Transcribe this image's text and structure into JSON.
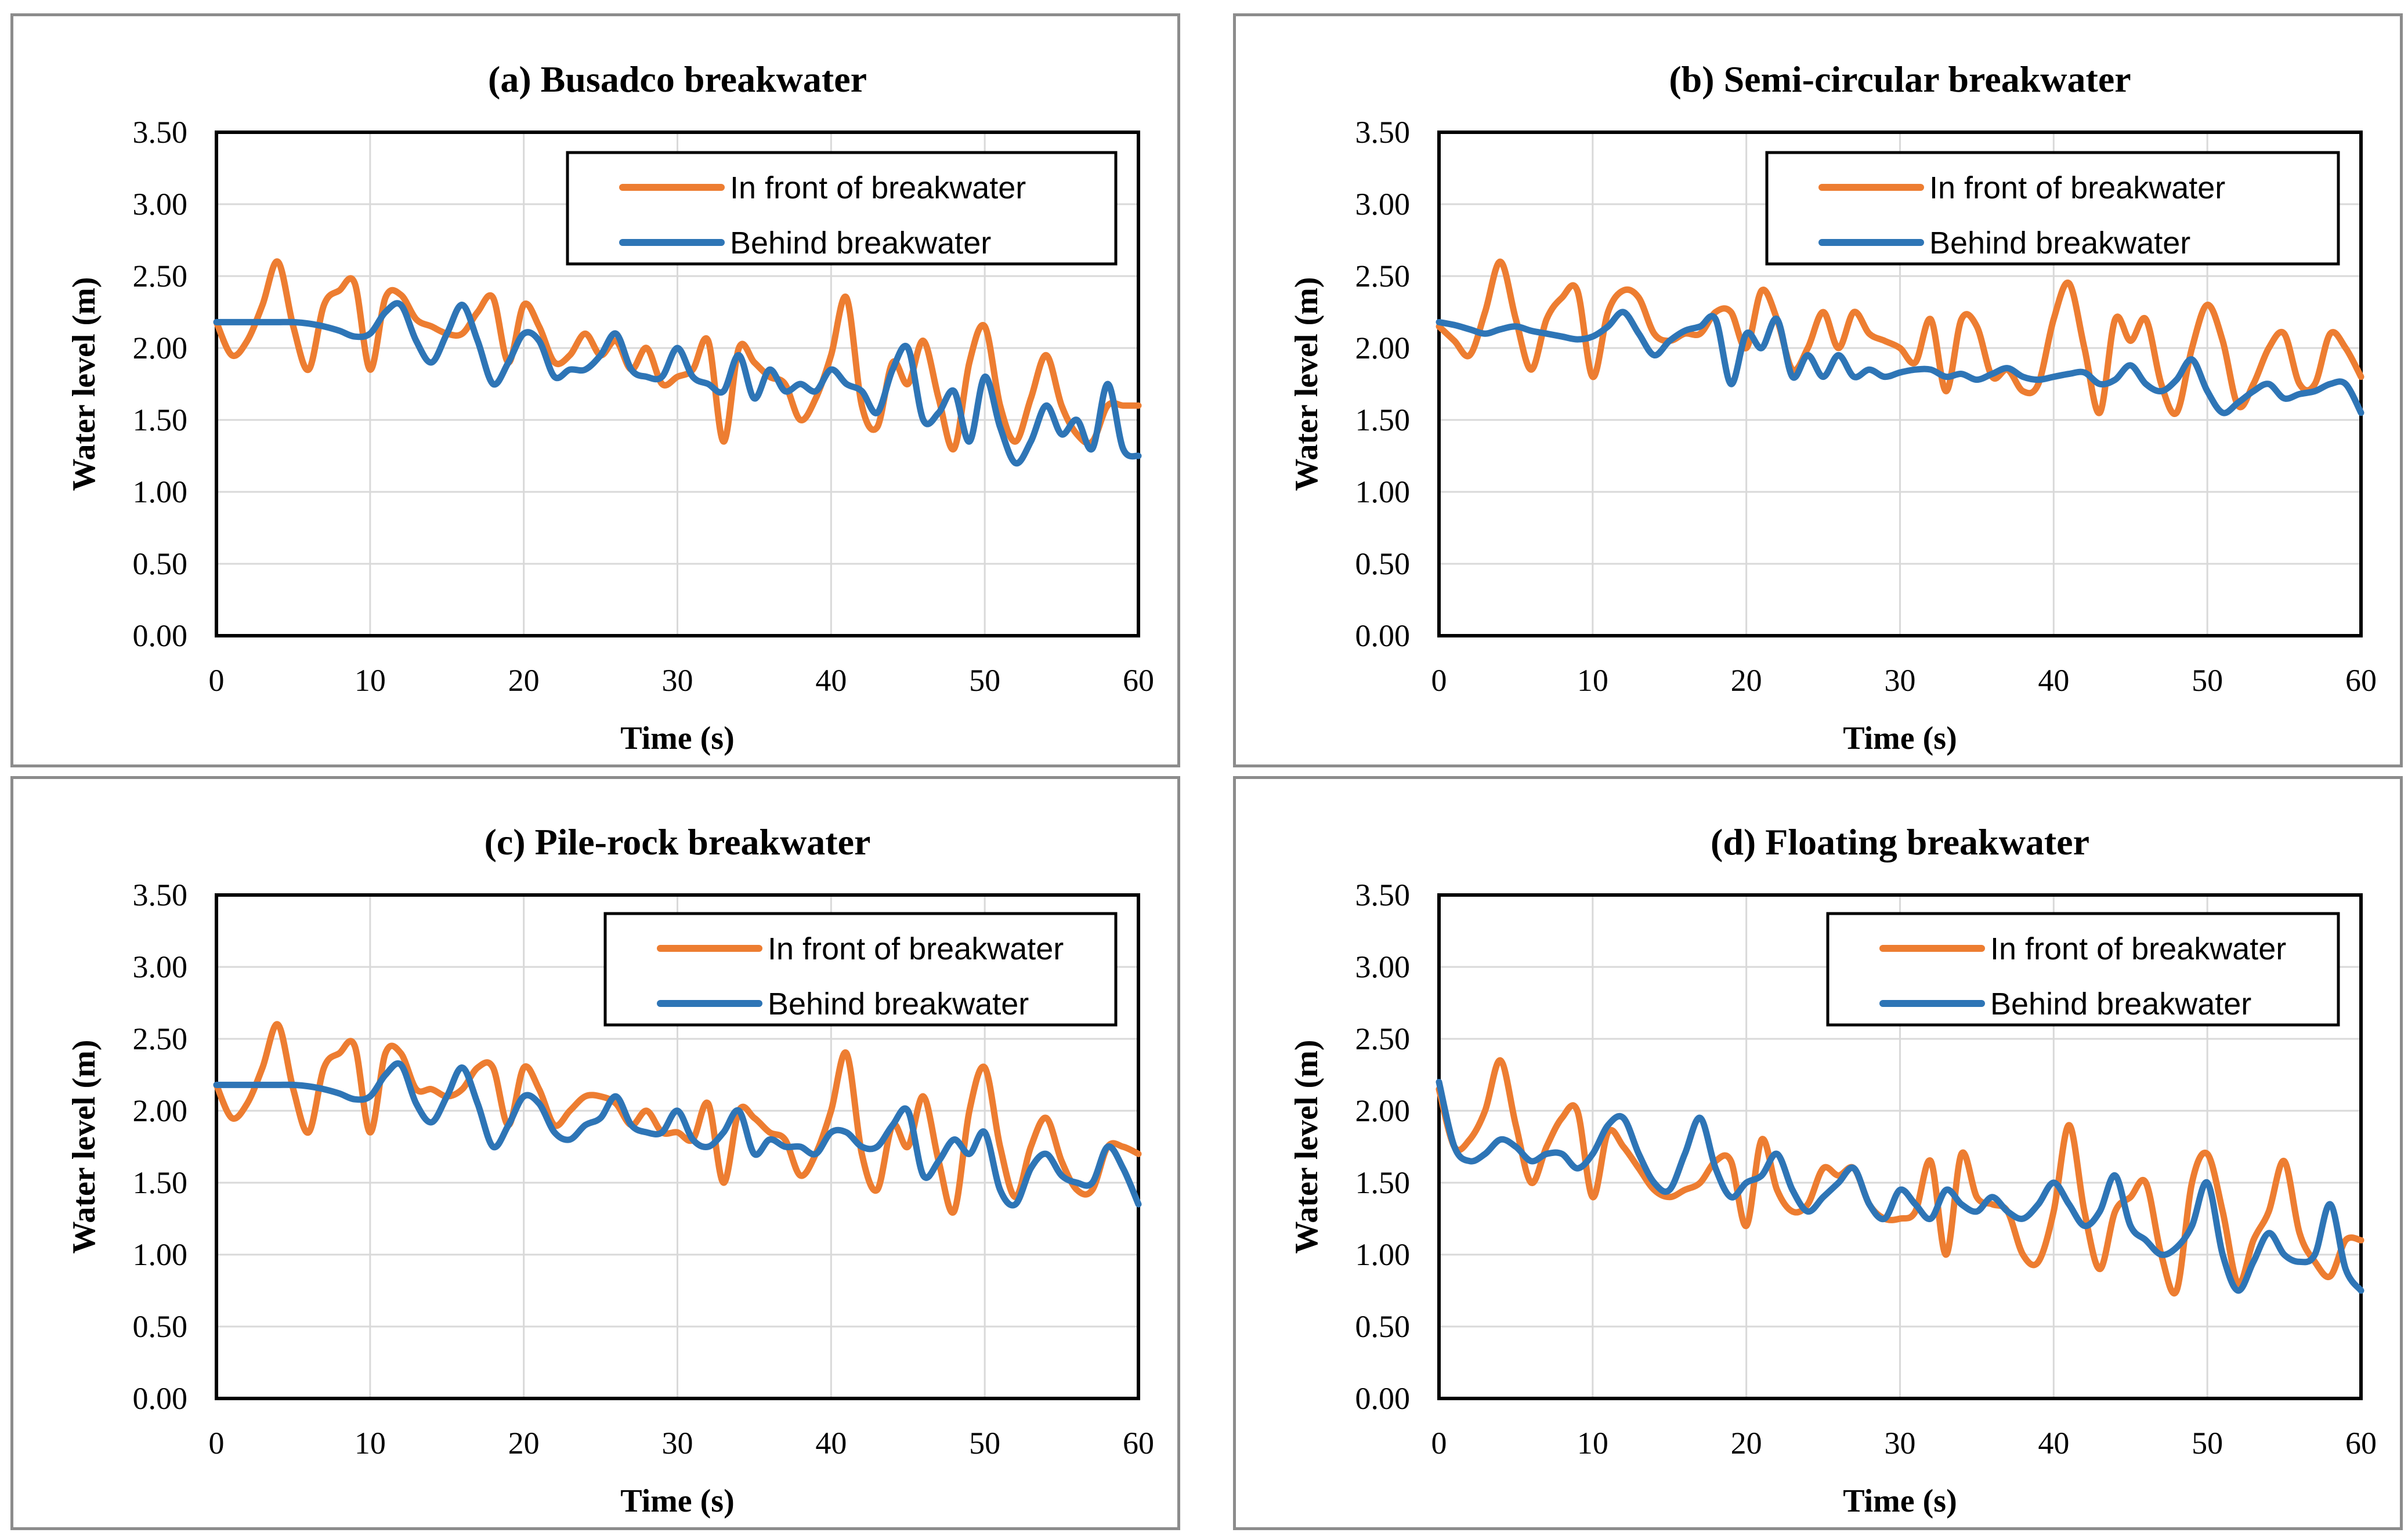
{
  "chart_data": [
    {
      "type": "line",
      "title": "(a) Busadco breakwater",
      "xlabel": "Time (s)",
      "ylabel": "Water level (m)",
      "xlim": [
        0,
        60
      ],
      "ylim": [
        0,
        3.5
      ],
      "xticks": [
        "0",
        "10",
        "20",
        "30",
        "40",
        "50",
        "60"
      ],
      "yticks": [
        "0.00",
        "0.50",
        "1.00",
        "1.50",
        "2.00",
        "2.50",
        "3.00",
        "3.50"
      ],
      "grid": true,
      "legend_position": "top-right",
      "series": [
        {
          "name": "In front of breakwater",
          "color": "#ed7d31",
          "x": [
            0,
            1,
            2,
            3,
            4,
            5,
            6,
            7,
            8,
            9,
            10,
            11,
            12,
            13,
            14,
            15,
            16,
            17,
            18,
            19,
            20,
            21,
            22,
            23,
            24,
            25,
            26,
            27,
            28,
            29,
            30,
            31,
            32,
            33,
            34,
            35,
            36,
            37,
            38,
            39,
            40,
            41,
            42,
            43,
            44,
            45,
            46,
            47,
            48,
            49,
            50,
            51,
            52,
            53,
            54,
            55,
            56,
            57,
            58,
            59,
            60
          ],
          "values": [
            2.18,
            1.95,
            2.05,
            2.3,
            2.6,
            2.15,
            1.85,
            2.3,
            2.4,
            2.45,
            1.85,
            2.35,
            2.37,
            2.2,
            2.15,
            2.1,
            2.1,
            2.25,
            2.35,
            1.9,
            2.3,
            2.15,
            1.9,
            1.95,
            2.1,
            1.95,
            2.05,
            1.85,
            2.0,
            1.75,
            1.8,
            1.85,
            2.05,
            1.35,
            2.0,
            1.9,
            1.8,
            1.75,
            1.5,
            1.65,
            1.95,
            2.35,
            1.6,
            1.45,
            1.9,
            1.75,
            2.05,
            1.65,
            1.3,
            1.9,
            2.15,
            1.6,
            1.35,
            1.65,
            1.95,
            1.6,
            1.4,
            1.35,
            1.6,
            1.6,
            1.6
          ]
        },
        {
          "name": "Behind breakwater",
          "color": "#2e75b6",
          "x": [
            0,
            1,
            2,
            3,
            4,
            5,
            6,
            7,
            8,
            9,
            10,
            11,
            12,
            13,
            14,
            15,
            16,
            17,
            18,
            19,
            20,
            21,
            22,
            23,
            24,
            25,
            26,
            27,
            28,
            29,
            30,
            31,
            32,
            33,
            34,
            35,
            36,
            37,
            38,
            39,
            40,
            41,
            42,
            43,
            44,
            45,
            46,
            47,
            48,
            49,
            50,
            51,
            52,
            53,
            54,
            55,
            56,
            57,
            58,
            59,
            60
          ],
          "values": [
            2.18,
            2.18,
            2.18,
            2.18,
            2.18,
            2.18,
            2.17,
            2.15,
            2.12,
            2.08,
            2.1,
            2.25,
            2.3,
            2.05,
            1.9,
            2.1,
            2.3,
            2.05,
            1.75,
            1.9,
            2.1,
            2.05,
            1.8,
            1.85,
            1.85,
            1.95,
            2.1,
            1.85,
            1.8,
            1.8,
            2.0,
            1.8,
            1.75,
            1.7,
            1.95,
            1.65,
            1.85,
            1.7,
            1.75,
            1.7,
            1.85,
            1.75,
            1.7,
            1.55,
            1.85,
            2.0,
            1.5,
            1.55,
            1.7,
            1.35,
            1.8,
            1.45,
            1.2,
            1.35,
            1.6,
            1.4,
            1.5,
            1.3,
            1.75,
            1.3,
            1.25
          ]
        }
      ]
    },
    {
      "type": "line",
      "title": "(b) Semi-circular breakwater",
      "xlabel": "Time (s)",
      "ylabel": "Water level (m)",
      "xlim": [
        0,
        60
      ],
      "ylim": [
        0,
        3.5
      ],
      "xticks": [
        "0",
        "10",
        "20",
        "30",
        "40",
        "50",
        "60"
      ],
      "yticks": [
        "0.00",
        "0.50",
        "1.00",
        "1.50",
        "2.00",
        "2.50",
        "3.00",
        "3.50"
      ],
      "grid": true,
      "legend_position": "top-right",
      "series": [
        {
          "name": "In front of breakwater",
          "color": "#ed7d31",
          "x": [
            0,
            1,
            2,
            3,
            4,
            5,
            6,
            7,
            8,
            9,
            10,
            11,
            12,
            13,
            14,
            15,
            16,
            17,
            18,
            19,
            20,
            21,
            22,
            23,
            24,
            25,
            26,
            27,
            28,
            29,
            30,
            31,
            32,
            33,
            34,
            35,
            36,
            37,
            38,
            39,
            40,
            41,
            42,
            43,
            44,
            45,
            46,
            47,
            48,
            49,
            50,
            51,
            52,
            53,
            54,
            55,
            56,
            57,
            58,
            59,
            60
          ],
          "values": [
            2.15,
            2.05,
            1.95,
            2.25,
            2.6,
            2.2,
            1.85,
            2.2,
            2.35,
            2.4,
            1.8,
            2.25,
            2.4,
            2.35,
            2.1,
            2.05,
            2.1,
            2.1,
            2.25,
            2.25,
            2.0,
            2.4,
            2.2,
            1.85,
            2.0,
            2.25,
            2.0,
            2.25,
            2.1,
            2.05,
            2.0,
            1.9,
            2.2,
            1.7,
            2.2,
            2.15,
            1.8,
            1.85,
            1.7,
            1.75,
            2.2,
            2.45,
            2.0,
            1.55,
            2.2,
            2.05,
            2.2,
            1.75,
            1.55,
            2.0,
            2.3,
            2.05,
            1.6,
            1.75,
            2.0,
            2.1,
            1.75,
            1.75,
            2.1,
            2.0,
            1.8
          ]
        },
        {
          "name": "Behind breakwater",
          "color": "#2e75b6",
          "x": [
            0,
            1,
            2,
            3,
            4,
            5,
            6,
            7,
            8,
            9,
            10,
            11,
            12,
            13,
            14,
            15,
            16,
            17,
            18,
            19,
            20,
            21,
            22,
            23,
            24,
            25,
            26,
            27,
            28,
            29,
            30,
            31,
            32,
            33,
            34,
            35,
            36,
            37,
            38,
            39,
            40,
            41,
            42,
            43,
            44,
            45,
            46,
            47,
            48,
            49,
            50,
            51,
            52,
            53,
            54,
            55,
            56,
            57,
            58,
            59,
            60
          ],
          "values": [
            2.18,
            2.16,
            2.13,
            2.1,
            2.13,
            2.15,
            2.12,
            2.1,
            2.08,
            2.06,
            2.08,
            2.15,
            2.25,
            2.1,
            1.95,
            2.05,
            2.12,
            2.15,
            2.2,
            1.75,
            2.1,
            2.0,
            2.2,
            1.8,
            1.95,
            1.8,
            1.95,
            1.8,
            1.85,
            1.8,
            1.83,
            1.85,
            1.85,
            1.8,
            1.82,
            1.78,
            1.82,
            1.86,
            1.8,
            1.78,
            1.8,
            1.82,
            1.83,
            1.75,
            1.78,
            1.88,
            1.75,
            1.7,
            1.78,
            1.92,
            1.7,
            1.55,
            1.62,
            1.7,
            1.75,
            1.65,
            1.68,
            1.7,
            1.75,
            1.75,
            1.55
          ]
        }
      ]
    },
    {
      "type": "line",
      "title": "(c) Pile-rock breakwater",
      "xlabel": "Time (s)",
      "ylabel": "Water level (m)",
      "xlim": [
        0,
        60
      ],
      "ylim": [
        0,
        3.5
      ],
      "xticks": [
        "0",
        "10",
        "20",
        "30",
        "40",
        "50",
        "60"
      ],
      "yticks": [
        "0.00",
        "0.50",
        "1.00",
        "1.50",
        "2.00",
        "2.50",
        "3.00",
        "3.50"
      ],
      "grid": true,
      "legend_position": "top-right",
      "series": [
        {
          "name": "In front of breakwater",
          "color": "#ed7d31",
          "x": [
            0,
            1,
            2,
            3,
            4,
            5,
            6,
            7,
            8,
            9,
            10,
            11,
            12,
            13,
            14,
            15,
            16,
            17,
            18,
            19,
            20,
            21,
            22,
            23,
            24,
            25,
            26,
            27,
            28,
            29,
            30,
            31,
            32,
            33,
            34,
            35,
            36,
            37,
            38,
            39,
            40,
            41,
            42,
            43,
            44,
            45,
            46,
            47,
            48,
            49,
            50,
            51,
            52,
            53,
            54,
            55,
            56,
            57,
            58,
            59,
            60
          ],
          "values": [
            2.18,
            1.95,
            2.05,
            2.3,
            2.6,
            2.15,
            1.85,
            2.3,
            2.4,
            2.45,
            1.85,
            2.4,
            2.4,
            2.15,
            2.15,
            2.1,
            2.15,
            2.3,
            2.3,
            1.9,
            2.3,
            2.15,
            1.9,
            2.0,
            2.1,
            2.1,
            2.05,
            1.9,
            2.0,
            1.85,
            1.85,
            1.8,
            2.05,
            1.5,
            2.0,
            1.95,
            1.85,
            1.8,
            1.55,
            1.7,
            2.0,
            2.4,
            1.7,
            1.45,
            1.9,
            1.75,
            2.1,
            1.65,
            1.3,
            2.0,
            2.3,
            1.75,
            1.4,
            1.75,
            1.95,
            1.65,
            1.45,
            1.45,
            1.75,
            1.75,
            1.7
          ]
        },
        {
          "name": "Behind breakwater",
          "color": "#2e75b6",
          "x": [
            0,
            1,
            2,
            3,
            4,
            5,
            6,
            7,
            8,
            9,
            10,
            11,
            12,
            13,
            14,
            15,
            16,
            17,
            18,
            19,
            20,
            21,
            22,
            23,
            24,
            25,
            26,
            27,
            28,
            29,
            30,
            31,
            32,
            33,
            34,
            35,
            36,
            37,
            38,
            39,
            40,
            41,
            42,
            43,
            44,
            45,
            46,
            47,
            48,
            49,
            50,
            51,
            52,
            53,
            54,
            55,
            56,
            57,
            58,
            59,
            60
          ],
          "values": [
            2.18,
            2.18,
            2.18,
            2.18,
            2.18,
            2.18,
            2.17,
            2.15,
            2.12,
            2.08,
            2.1,
            2.25,
            2.32,
            2.05,
            1.92,
            2.1,
            2.3,
            2.05,
            1.75,
            1.9,
            2.1,
            2.05,
            1.85,
            1.8,
            1.9,
            1.95,
            2.1,
            1.9,
            1.85,
            1.85,
            2.0,
            1.8,
            1.75,
            1.85,
            2.0,
            1.7,
            1.8,
            1.75,
            1.75,
            1.7,
            1.85,
            1.85,
            1.75,
            1.75,
            1.9,
            2.0,
            1.55,
            1.65,
            1.8,
            1.7,
            1.85,
            1.45,
            1.35,
            1.6,
            1.7,
            1.55,
            1.5,
            1.5,
            1.75,
            1.6,
            1.35
          ]
        }
      ]
    },
    {
      "type": "line",
      "title": "(d) Floating breakwater",
      "xlabel": "Time (s)",
      "ylabel": "Water level (m)",
      "xlim": [
        0,
        60
      ],
      "ylim": [
        0,
        3.5
      ],
      "xticks": [
        "0",
        "10",
        "20",
        "30",
        "40",
        "50",
        "60"
      ],
      "yticks": [
        "0.00",
        "0.50",
        "1.00",
        "1.50",
        "2.00",
        "2.50",
        "3.00",
        "3.50"
      ],
      "grid": true,
      "legend_position": "top-right",
      "series": [
        {
          "name": "In front of breakwater",
          "color": "#ed7d31",
          "x": [
            0,
            1,
            2,
            3,
            4,
            5,
            6,
            7,
            8,
            9,
            10,
            11,
            12,
            13,
            14,
            15,
            16,
            17,
            18,
            19,
            20,
            21,
            22,
            23,
            24,
            25,
            26,
            27,
            28,
            29,
            30,
            31,
            32,
            33,
            34,
            35,
            36,
            37,
            38,
            39,
            40,
            41,
            42,
            43,
            44,
            45,
            46,
            47,
            48,
            49,
            50,
            51,
            52,
            53,
            54,
            55,
            56,
            57,
            58,
            59,
            60
          ],
          "values": [
            2.15,
            1.75,
            1.8,
            2.0,
            2.35,
            1.9,
            1.5,
            1.75,
            1.95,
            2.0,
            1.4,
            1.85,
            1.75,
            1.6,
            1.45,
            1.4,
            1.45,
            1.5,
            1.65,
            1.65,
            1.2,
            1.8,
            1.45,
            1.3,
            1.35,
            1.6,
            1.55,
            1.6,
            1.35,
            1.25,
            1.25,
            1.3,
            1.65,
            1.0,
            1.7,
            1.4,
            1.35,
            1.3,
            1.0,
            0.95,
            1.3,
            1.9,
            1.3,
            0.9,
            1.3,
            1.4,
            1.5,
            1.0,
            0.75,
            1.5,
            1.7,
            1.3,
            0.8,
            1.1,
            1.3,
            1.65,
            1.15,
            0.95,
            0.85,
            1.1,
            1.1
          ]
        },
        {
          "name": "Behind breakwater",
          "color": "#2e75b6",
          "x": [
            0,
            1,
            2,
            3,
            4,
            5,
            6,
            7,
            8,
            9,
            10,
            11,
            12,
            13,
            14,
            15,
            16,
            17,
            18,
            19,
            20,
            21,
            22,
            23,
            24,
            25,
            26,
            27,
            28,
            29,
            30,
            31,
            32,
            33,
            34,
            35,
            36,
            37,
            38,
            39,
            40,
            41,
            42,
            43,
            44,
            45,
            46,
            47,
            48,
            49,
            50,
            51,
            52,
            53,
            54,
            55,
            56,
            57,
            58,
            59,
            60
          ],
          "values": [
            2.2,
            1.75,
            1.65,
            1.7,
            1.8,
            1.75,
            1.65,
            1.7,
            1.7,
            1.6,
            1.7,
            1.9,
            1.95,
            1.7,
            1.5,
            1.45,
            1.7,
            1.95,
            1.6,
            1.4,
            1.5,
            1.55,
            1.7,
            1.45,
            1.3,
            1.4,
            1.5,
            1.6,
            1.35,
            1.25,
            1.45,
            1.35,
            1.25,
            1.45,
            1.35,
            1.3,
            1.4,
            1.3,
            1.25,
            1.35,
            1.5,
            1.35,
            1.2,
            1.3,
            1.55,
            1.2,
            1.1,
            1.0,
            1.05,
            1.2,
            1.5,
            1.0,
            0.75,
            0.95,
            1.15,
            1.0,
            0.95,
            1.0,
            1.35,
            0.9,
            0.75
          ]
        }
      ]
    }
  ]
}
